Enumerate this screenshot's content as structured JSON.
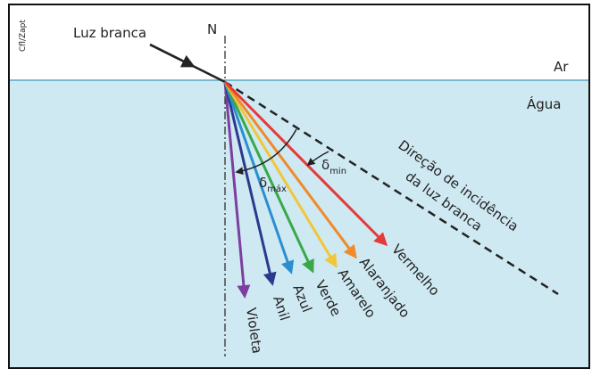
{
  "credit": "Cfl/Zapt",
  "incident_label": "Luz branca",
  "normal_label": "N",
  "media": {
    "top": "Ar",
    "bottom": "Água"
  },
  "incidence_direction": [
    "Direção de incidência",
    "da luz branca"
  ],
  "angles": {
    "max": {
      "symbol": "δ",
      "subscript": "máx"
    },
    "min": {
      "symbol": "δ",
      "subscript": "min"
    }
  },
  "rays": [
    "Violeta",
    "Anil",
    "Azul",
    "Verde",
    "Amarelo",
    "Alaranjado",
    "Vermelho"
  ]
}
